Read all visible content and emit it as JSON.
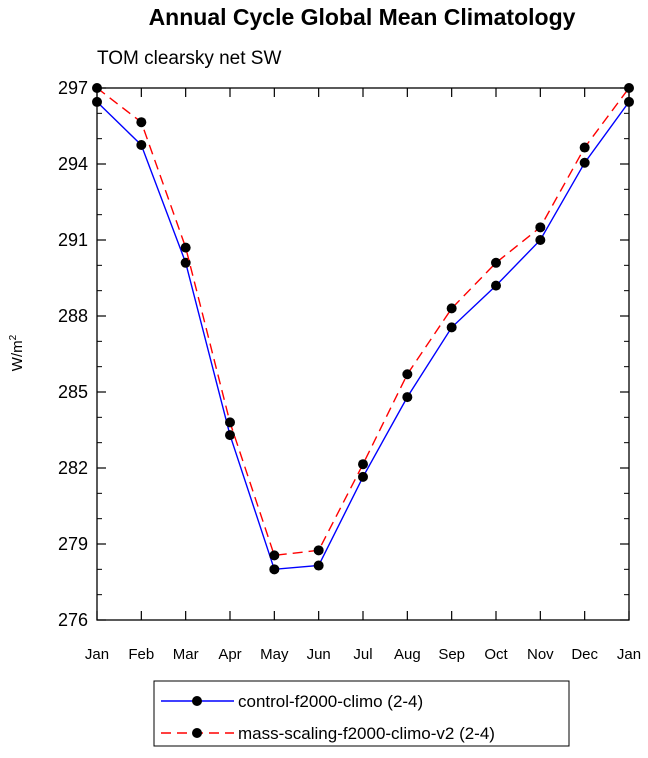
{
  "chart_data": {
    "type": "line",
    "title": "Annual Cycle Global Mean Climatology",
    "subtitle": "TOM clearsky net SW",
    "ylabel": "W/m",
    "ylabel_sup": "2",
    "xlabel": "",
    "categories": [
      "Jan",
      "Feb",
      "Mar",
      "Apr",
      "May",
      "Jun",
      "Jul",
      "Aug",
      "Sep",
      "Oct",
      "Nov",
      "Dec",
      "Jan"
    ],
    "ylim": [
      276,
      297
    ],
    "yticks": [
      276,
      279,
      282,
      285,
      288,
      291,
      294,
      297
    ],
    "grid": false,
    "legend_position": "bottom-center",
    "series": [
      {
        "name": "control-f2000-climo (2-4)",
        "color": "#0000ff",
        "dash": "solid",
        "values": [
          296.45,
          294.75,
          290.1,
          283.3,
          278.0,
          278.15,
          281.65,
          284.8,
          287.55,
          289.2,
          291.0,
          294.05,
          296.45
        ]
      },
      {
        "name": "mass-scaling-f2000-climo-v2 (2-4)",
        "color": "#ff0000",
        "dash": "dashed",
        "values": [
          297.0,
          295.65,
          290.7,
          283.8,
          278.55,
          278.75,
          282.15,
          285.7,
          288.3,
          290.1,
          291.5,
          294.65,
          297.0
        ]
      }
    ]
  }
}
